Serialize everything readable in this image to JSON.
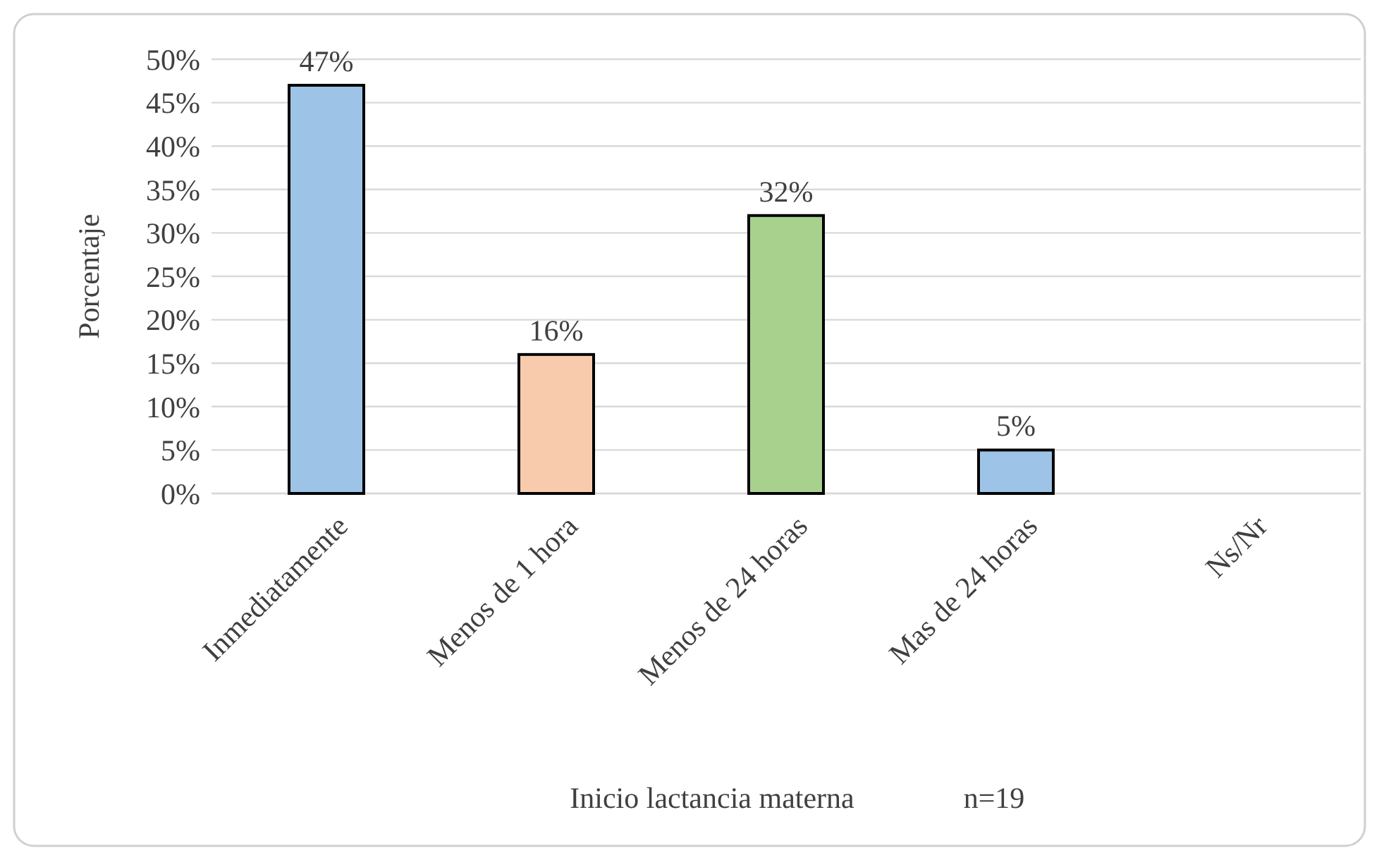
{
  "chart_data": {
    "type": "bar",
    "ylabel": "Porcentaje",
    "xlabel": "Inicio lactancia materna",
    "annotations": [
      "n=19"
    ],
    "categories": [
      "Inmediatamente",
      "Menos de 1 hora",
      "Menos de 24 horas",
      "Mas de 24 horas",
      "Ns/Nr"
    ],
    "values": [
      47,
      16,
      32,
      5,
      null
    ],
    "colors": [
      "#9dc3e6",
      "#f8cbad",
      "#a9d18e",
      "#9dc3e6",
      null
    ],
    "value_labels": [
      "47%",
      "16%",
      "32%",
      "5%",
      null
    ],
    "ylim": [
      0,
      50
    ],
    "yticks": [
      {
        "value": 0,
        "label": "0%"
      },
      {
        "value": 5,
        "label": "5%"
      },
      {
        "value": 10,
        "label": "10%"
      },
      {
        "value": 15,
        "label": "15%"
      },
      {
        "value": 20,
        "label": "20%"
      },
      {
        "value": 25,
        "label": "25%"
      },
      {
        "value": 30,
        "label": "30%"
      },
      {
        "value": 35,
        "label": "35%"
      },
      {
        "value": 40,
        "label": "40%"
      },
      {
        "value": 45,
        "label": "45%"
      },
      {
        "value": 50,
        "label": "50%"
      }
    ],
    "grid": "y"
  }
}
